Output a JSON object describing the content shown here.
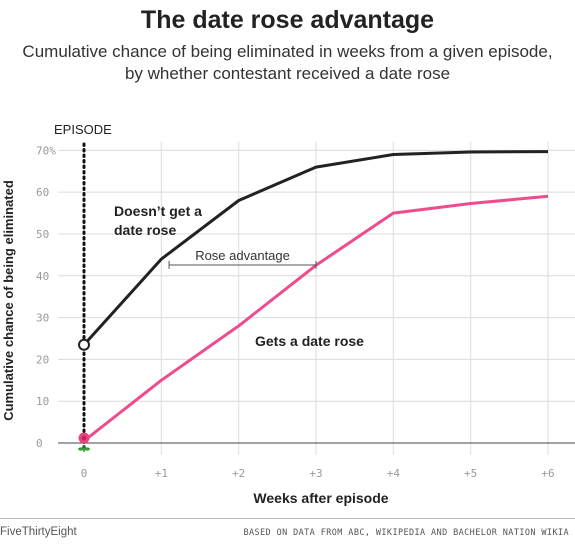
{
  "chart_data": {
    "type": "line",
    "title": "The date rose advantage",
    "subtitle": "Cumulative chance of being eliminated in weeks from a given episode, by whether contestant received a date rose",
    "xlabel": "Weeks after episode",
    "ylabel": "Cumulative chance of being eliminated",
    "x": [
      0,
      1,
      2,
      3,
      4,
      5,
      6
    ],
    "x_tick_labels": [
      "0",
      "+1",
      "+2",
      "+3",
      "+4",
      "+5",
      "+6"
    ],
    "y_ticks": [
      0,
      10,
      20,
      30,
      40,
      50,
      60,
      70
    ],
    "y_tick_labels": [
      "0",
      "10",
      "20",
      "30",
      "40",
      "50",
      "60",
      "70%"
    ],
    "ylim": [
      0,
      72
    ],
    "grid": true,
    "series": [
      {
        "name": "Doesn't get a date rose",
        "label": "Doesn’t get a\ndate rose",
        "color": "#222222",
        "values": [
          23.5,
          44,
          58,
          66,
          69,
          69.6,
          69.7
        ]
      },
      {
        "name": "Gets a date rose",
        "label": "Gets a date rose",
        "color": "#ee4c8e",
        "values": [
          0.5,
          15,
          28,
          42.5,
          55,
          57.3,
          59
        ]
      }
    ],
    "annotations": {
      "episode_marker": "EPISODE",
      "rose_advantage": "Rose advantage",
      "rose_advantage_span": [
        1.1,
        3.0
      ]
    }
  },
  "footer": {
    "brand": "FiveThirtyEight",
    "source": "BASED ON DATA FROM ABC, WIKIPEDIA AND BACHELOR NATION WIKIA"
  }
}
